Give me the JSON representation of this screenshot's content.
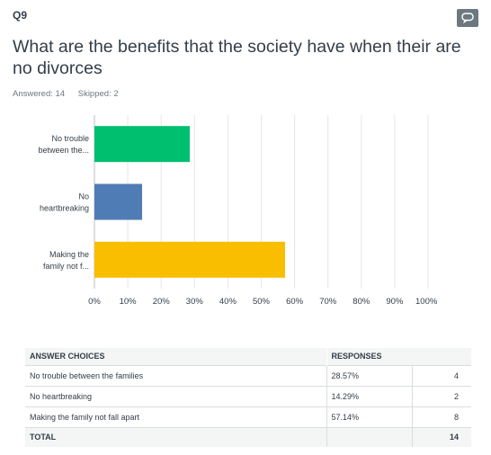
{
  "question": {
    "number": "Q9",
    "title": "What are the benefits that the society have when their are no divorces",
    "answered": "Answered: 14",
    "skipped": "Skipped: 2",
    "comment_icon": "speech-bubble-icon"
  },
  "chart_data": {
    "type": "bar",
    "orientation": "horizontal",
    "categories": [
      "No trouble between the...",
      "No heartbreaking",
      "Making the family not f..."
    ],
    "values": [
      28.57,
      14.29,
      57.14
    ],
    "colors": [
      "#00bf6f",
      "#507cb6",
      "#f9be00"
    ],
    "xticks": [
      "0%",
      "10%",
      "20%",
      "30%",
      "40%",
      "50%",
      "60%",
      "70%",
      "80%",
      "90%",
      "100%"
    ],
    "xlim": [
      0,
      100
    ],
    "grid": true
  },
  "table": {
    "headers": [
      "ANSWER CHOICES",
      "RESPONSES",
      ""
    ],
    "rows": [
      {
        "choice": "No trouble between the families",
        "percent": "28.57%",
        "count": "4"
      },
      {
        "choice": "No heartbreaking",
        "percent": "14.29%",
        "count": "2"
      },
      {
        "choice": "Making the family not fall apart",
        "percent": "57.14%",
        "count": "8"
      }
    ],
    "total_label": "TOTAL",
    "total_count": "14"
  }
}
